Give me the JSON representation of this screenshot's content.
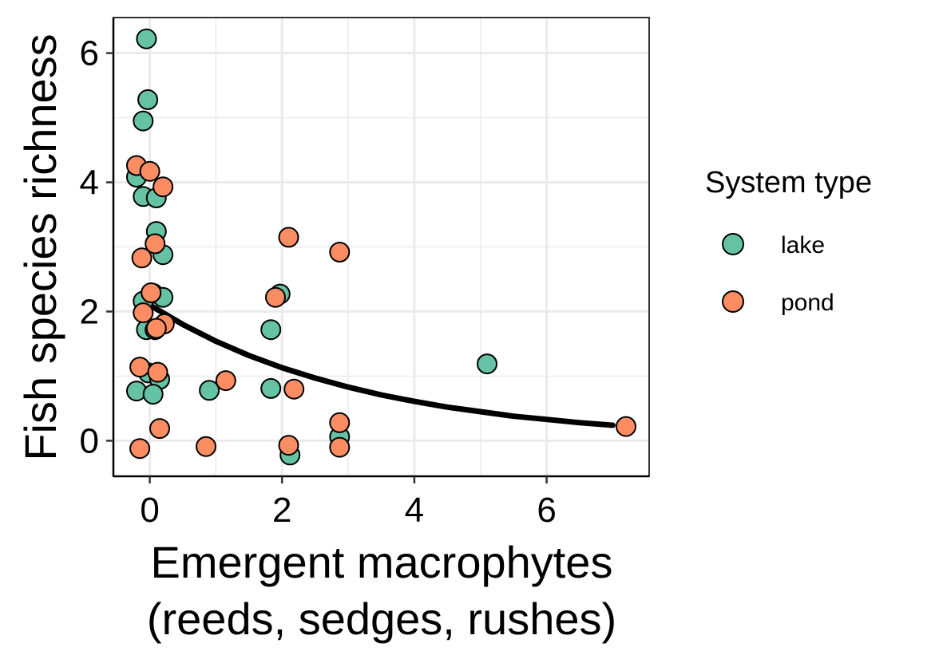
{
  "chart_data": {
    "type": "scatter",
    "xlabel_lines": [
      "Emergent macrophytes",
      "(reeds, sedges, rushes)"
    ],
    "ylabel": "Fish species richness",
    "xlim": [
      -0.55,
      7.55
    ],
    "ylim": [
      -0.55,
      6.55
    ],
    "x_ticks": [
      0,
      2,
      4,
      6
    ],
    "y_ticks": [
      0,
      2,
      4,
      6
    ],
    "grid": true,
    "legend": {
      "title": "System type",
      "placement": "right",
      "entries": [
        {
          "label": "lake",
          "color": "#66C2A5"
        },
        {
          "label": "pond",
          "color": "#FC8D62"
        }
      ]
    },
    "series": [
      {
        "name": "lake",
        "color": "#66C2A5",
        "points": [
          [
            -0.05,
            6.22
          ],
          [
            -0.03,
            5.28
          ],
          [
            -0.1,
            4.95
          ],
          [
            -0.2,
            4.08
          ],
          [
            -0.1,
            3.78
          ],
          [
            0.1,
            3.76
          ],
          [
            0.1,
            3.24
          ],
          [
            0.2,
            2.88
          ],
          [
            0.05,
            2.28
          ],
          [
            -0.1,
            2.16
          ],
          [
            0.2,
            2.22
          ],
          [
            -0.05,
            1.72
          ],
          [
            0.08,
            1.72
          ],
          [
            -0.02,
            1.05
          ],
          [
            0.15,
            0.95
          ],
          [
            -0.2,
            0.77
          ],
          [
            0.05,
            0.72
          ],
          [
            0.9,
            0.78
          ],
          [
            1.83,
            1.72
          ],
          [
            1.97,
            2.27
          ],
          [
            1.83,
            0.81
          ],
          [
            2.12,
            -0.22
          ],
          [
            2.87,
            0.06
          ],
          [
            5.1,
            1.19
          ]
        ]
      },
      {
        "name": "pond",
        "color": "#FC8D62",
        "points": [
          [
            -0.2,
            4.26
          ],
          [
            0.0,
            4.17
          ],
          [
            0.2,
            3.93
          ],
          [
            0.08,
            3.05
          ],
          [
            -0.12,
            2.83
          ],
          [
            0.02,
            2.29
          ],
          [
            -0.1,
            1.98
          ],
          [
            0.22,
            1.81
          ],
          [
            0.1,
            1.74
          ],
          [
            -0.15,
            1.14
          ],
          [
            0.12,
            1.06
          ],
          [
            1.15,
            0.93
          ],
          [
            2.18,
            0.8
          ],
          [
            0.15,
            0.19
          ],
          [
            -0.15,
            -0.12
          ],
          [
            0.85,
            -0.09
          ],
          [
            2.1,
            -0.07
          ],
          [
            2.1,
            3.15
          ],
          [
            1.9,
            2.22
          ],
          [
            2.87,
            2.92
          ],
          [
            2.87,
            0.28
          ],
          [
            2.87,
            -0.1
          ],
          [
            7.2,
            0.22
          ]
        ]
      }
    ],
    "fit_line": {
      "color": "#000000",
      "points": [
        [
          0,
          2.1
        ],
        [
          0.5,
          1.8
        ],
        [
          1,
          1.54
        ],
        [
          1.5,
          1.32
        ],
        [
          2,
          1.13
        ],
        [
          2.5,
          0.97
        ],
        [
          3,
          0.83
        ],
        [
          3.5,
          0.71
        ],
        [
          4,
          0.61
        ],
        [
          4.5,
          0.52
        ],
        [
          5,
          0.45
        ],
        [
          5.5,
          0.38
        ],
        [
          6,
          0.33
        ],
        [
          6.5,
          0.28
        ],
        [
          7,
          0.24
        ]
      ]
    }
  }
}
